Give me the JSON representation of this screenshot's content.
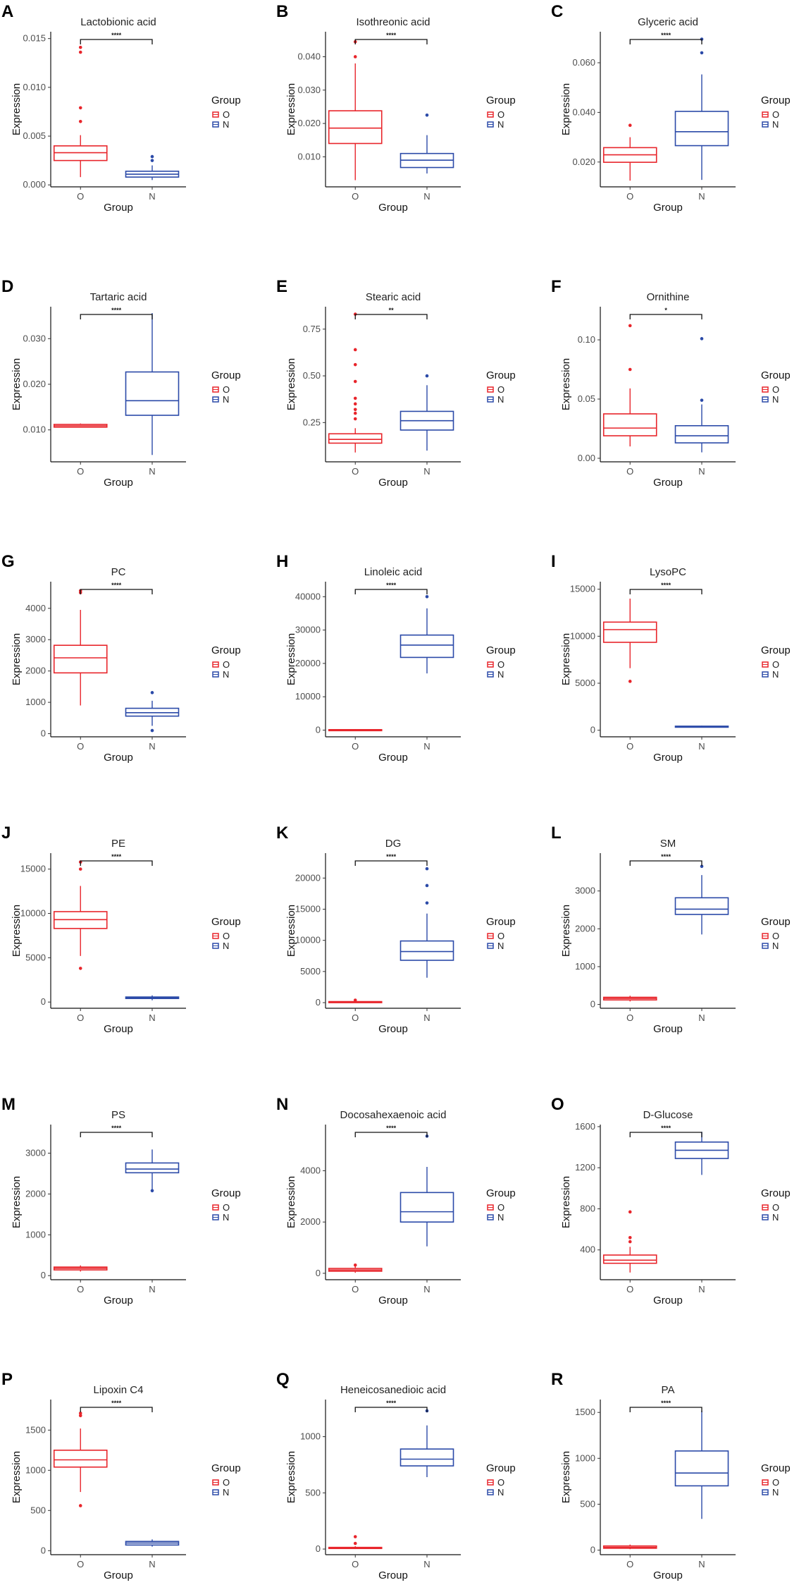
{
  "chart_data": [
    {
      "panel": "A",
      "type": "boxplot",
      "title": "Lactobionic acid",
      "xlabel": "Group",
      "ylabel": "Expression",
      "legend_title": "Group",
      "categories": [
        "O",
        "N"
      ],
      "colors": [
        "#e8252b",
        "#2b4aa8"
      ],
      "ylim": [
        -0.0002,
        0.0157
      ],
      "yticks": [
        0,
        0.005,
        0.01,
        0.015
      ],
      "ytick_labels": [
        "0.000",
        "0.005",
        "0.010",
        "0.015"
      ],
      "significance": "****",
      "boxes": [
        {
          "group": "O",
          "min": 0.0008,
          "q1": 0.0025,
          "median": 0.0033,
          "q3": 0.004,
          "max": 0.0051,
          "outliers": [
            0.0065,
            0.0079,
            0.0136,
            0.0141
          ]
        },
        {
          "group": "N",
          "min": 0.0005,
          "q1": 0.0008,
          "median": 0.0011,
          "q3": 0.0014,
          "max": 0.002,
          "outliers": [
            0.0025,
            0.0029
          ]
        }
      ]
    },
    {
      "panel": "B",
      "type": "boxplot",
      "title": "Isothreonic acid",
      "xlabel": "Group",
      "ylabel": "Expression",
      "legend_title": "Group",
      "categories": [
        "O",
        "N"
      ],
      "colors": [
        "#e8252b",
        "#2b4aa8"
      ],
      "ylim": [
        0.001,
        0.0475
      ],
      "yticks": [
        0.01,
        0.02,
        0.03,
        0.04
      ],
      "ytick_labels": [
        "0.010",
        "0.020",
        "0.030",
        "0.040"
      ],
      "significance": "****",
      "boxes": [
        {
          "group": "O",
          "min": 0.003,
          "q1": 0.014,
          "median": 0.0186,
          "q3": 0.0238,
          "max": 0.038,
          "outliers": [
            0.04,
            0.0445
          ]
        },
        {
          "group": "N",
          "min": 0.005,
          "q1": 0.0068,
          "median": 0.009,
          "q3": 0.011,
          "max": 0.0165,
          "outliers": [
            0.0225
          ]
        }
      ]
    },
    {
      "panel": "C",
      "type": "boxplot",
      "title": "Glyceric acid",
      "xlabel": "Group",
      "ylabel": "Expression",
      "legend_title": "Group",
      "categories": [
        "O",
        "N"
      ],
      "colors": [
        "#e8252b",
        "#2b4aa8"
      ],
      "ylim": [
        0.01,
        0.0725
      ],
      "yticks": [
        0.02,
        0.04,
        0.06
      ],
      "ytick_labels": [
        "0.020",
        "0.040",
        "0.060"
      ],
      "significance": "****",
      "boxes": [
        {
          "group": "O",
          "min": 0.0125,
          "q1": 0.0199,
          "median": 0.0229,
          "q3": 0.0258,
          "max": 0.03,
          "outliers": [
            0.0348
          ]
        },
        {
          "group": "N",
          "min": 0.0128,
          "q1": 0.0266,
          "median": 0.0322,
          "q3": 0.0404,
          "max": 0.0553,
          "outliers": [
            0.064,
            0.0695
          ]
        }
      ]
    },
    {
      "panel": "D",
      "type": "boxplot",
      "title": "Tartaric acid",
      "xlabel": "Group",
      "ylabel": "Expression",
      "legend_title": "Group",
      "categories": [
        "O",
        "N"
      ],
      "colors": [
        "#e8252b",
        "#2b4aa8"
      ],
      "ylim": [
        0.003,
        0.037
      ],
      "yticks": [
        0.01,
        0.02,
        0.03
      ],
      "ytick_labels": [
        "0.010",
        "0.020",
        "0.030"
      ],
      "significance": "****",
      "boxes": [
        {
          "group": "O",
          "min": 0.0105,
          "q1": 0.0106,
          "median": 0.0109,
          "q3": 0.0112,
          "max": 0.0114,
          "outliers": []
        },
        {
          "group": "N",
          "min": 0.0045,
          "q1": 0.0132,
          "median": 0.0164,
          "q3": 0.0227,
          "max": 0.0356,
          "outliers": []
        }
      ]
    },
    {
      "panel": "E",
      "type": "boxplot",
      "title": "Stearic acid",
      "xlabel": "Group",
      "ylabel": "Expression",
      "legend_title": "Group",
      "categories": [
        "O",
        "N"
      ],
      "colors": [
        "#e8252b",
        "#2b4aa8"
      ],
      "ylim": [
        0.04,
        0.87
      ],
      "yticks": [
        0.25,
        0.5,
        0.75
      ],
      "ytick_labels": [
        "0.25",
        "0.50",
        "0.75"
      ],
      "significance": "**",
      "boxes": [
        {
          "group": "O",
          "min": 0.09,
          "q1": 0.14,
          "median": 0.16,
          "q3": 0.19,
          "max": 0.22,
          "outliers": [
            0.27,
            0.3,
            0.32,
            0.35,
            0.38,
            0.47,
            0.56,
            0.64,
            0.83
          ]
        },
        {
          "group": "N",
          "min": 0.1,
          "q1": 0.21,
          "median": 0.26,
          "q3": 0.31,
          "max": 0.45,
          "outliers": [
            0.5
          ]
        }
      ]
    },
    {
      "panel": "F",
      "type": "boxplot",
      "title": "Ornithine",
      "xlabel": "Group",
      "ylabel": "Expression",
      "legend_title": "Group",
      "categories": [
        "O",
        "N"
      ],
      "colors": [
        "#e8252b",
        "#2b4aa8"
      ],
      "ylim": [
        -0.003,
        0.128
      ],
      "yticks": [
        0,
        0.05,
        0.1
      ],
      "ytick_labels": [
        "0.00",
        "0.05",
        "0.10"
      ],
      "significance": "*",
      "boxes": [
        {
          "group": "O",
          "min": 0.01,
          "q1": 0.019,
          "median": 0.0255,
          "q3": 0.0375,
          "max": 0.059,
          "outliers": [
            0.075,
            0.112
          ]
        },
        {
          "group": "N",
          "min": 0.005,
          "q1": 0.013,
          "median": 0.019,
          "q3": 0.0275,
          "max": 0.0455,
          "outliers": [
            0.049,
            0.101
          ]
        }
      ]
    },
    {
      "panel": "G",
      "type": "boxplot",
      "title": "PC",
      "xlabel": "Group",
      "ylabel": "Expression",
      "legend_title": "Group",
      "categories": [
        "O",
        "N"
      ],
      "colors": [
        "#e8252b",
        "#2b4aa8"
      ],
      "ylim": [
        -100,
        4850
      ],
      "yticks": [
        0,
        1000,
        2000,
        3000,
        4000
      ],
      "ytick_labels": [
        "0",
        "1000",
        "2000",
        "3000",
        "4000"
      ],
      "significance": "****",
      "boxes": [
        {
          "group": "O",
          "min": 900,
          "q1": 1940,
          "median": 2420,
          "q3": 2820,
          "max": 3950,
          "outliers": [
            4500,
            4560
          ]
        },
        {
          "group": "N",
          "min": 250,
          "q1": 560,
          "median": 670,
          "q3": 810,
          "max": 1050,
          "outliers": [
            100,
            1310
          ]
        }
      ]
    },
    {
      "panel": "H",
      "type": "boxplot",
      "title": "Linoleic acid",
      "xlabel": "Group",
      "ylabel": "Expression",
      "legend_title": "Group",
      "categories": [
        "O",
        "N"
      ],
      "colors": [
        "#e8252b",
        "#2b4aa8"
      ],
      "ylim": [
        -2000,
        44500
      ],
      "yticks": [
        0,
        10000,
        20000,
        30000,
        40000
      ],
      "ytick_labels": [
        "0",
        "10000",
        "20000",
        "30000",
        "40000"
      ],
      "significance": "****",
      "boxes": [
        {
          "group": "O",
          "min": 0,
          "q1": 50,
          "median": 100,
          "q3": 150,
          "max": 250,
          "outliers": []
        },
        {
          "group": "N",
          "min": 17000,
          "q1": 21800,
          "median": 25500,
          "q3": 28500,
          "max": 36500,
          "outliers": [
            40000
          ]
        }
      ]
    },
    {
      "panel": "I",
      "type": "boxplot",
      "title": "LysoPC",
      "xlabel": "Group",
      "ylabel": "Expression",
      "legend_title": "Group",
      "categories": [
        "O",
        "N"
      ],
      "colors": [
        "#e8252b",
        "#2b4aa8"
      ],
      "ylim": [
        -700,
        15800
      ],
      "yticks": [
        0,
        5000,
        10000,
        15000
      ],
      "ytick_labels": [
        "0",
        "5000",
        "10000",
        "15000"
      ],
      "significance": "****",
      "boxes": [
        {
          "group": "O",
          "min": 6600,
          "q1": 9350,
          "median": 10700,
          "q3": 11500,
          "max": 14000,
          "outliers": [
            5200
          ]
        },
        {
          "group": "N",
          "min": 280,
          "q1": 330,
          "median": 380,
          "q3": 430,
          "max": 480,
          "outliers": []
        }
      ]
    },
    {
      "panel": "J",
      "type": "boxplot",
      "title": "PE",
      "xlabel": "Group",
      "ylabel": "Expression",
      "legend_title": "Group",
      "categories": [
        "O",
        "N"
      ],
      "colors": [
        "#e8252b",
        "#2b4aa8"
      ],
      "ylim": [
        -700,
        16800
      ],
      "yticks": [
        0,
        5000,
        10000,
        15000
      ],
      "ytick_labels": [
        "0",
        "5000",
        "10000",
        "15000"
      ],
      "significance": "****",
      "boxes": [
        {
          "group": "O",
          "min": 5200,
          "q1": 8300,
          "median": 9300,
          "q3": 10200,
          "max": 13100,
          "outliers": [
            3800,
            15000,
            15800
          ]
        },
        {
          "group": "N",
          "min": 200,
          "q1": 400,
          "median": 480,
          "q3": 570,
          "max": 750,
          "outliers": []
        }
      ]
    },
    {
      "panel": "K",
      "type": "boxplot",
      "title": "DG",
      "xlabel": "Group",
      "ylabel": "Expression",
      "legend_title": "Group",
      "categories": [
        "O",
        "N"
      ],
      "colors": [
        "#e8252b",
        "#2b4aa8"
      ],
      "ylim": [
        -900,
        24000
      ],
      "yticks": [
        0,
        5000,
        10000,
        15000,
        20000
      ],
      "ytick_labels": [
        "0",
        "5000",
        "10000",
        "15000",
        "20000"
      ],
      "significance": "****",
      "boxes": [
        {
          "group": "O",
          "min": 0,
          "q1": 60,
          "median": 120,
          "q3": 170,
          "max": 230,
          "outliers": [
            400
          ]
        },
        {
          "group": "N",
          "min": 4000,
          "q1": 6800,
          "median": 8200,
          "q3": 9900,
          "max": 14300,
          "outliers": [
            16000,
            18800,
            21500
          ]
        }
      ]
    },
    {
      "panel": "L",
      "type": "boxplot",
      "title": "SM",
      "xlabel": "Group",
      "ylabel": "Expression",
      "legend_title": "Group",
      "categories": [
        "O",
        "N"
      ],
      "colors": [
        "#e8252b",
        "#2b4aa8"
      ],
      "ylim": [
        -100,
        4000
      ],
      "yticks": [
        0,
        1000,
        2000,
        3000
      ],
      "ytick_labels": [
        "0",
        "1000",
        "2000",
        "3000"
      ],
      "significance": "****",
      "boxes": [
        {
          "group": "O",
          "min": 80,
          "q1": 120,
          "median": 160,
          "q3": 190,
          "max": 230,
          "outliers": []
        },
        {
          "group": "N",
          "min": 1850,
          "q1": 2380,
          "median": 2520,
          "q3": 2820,
          "max": 3420,
          "outliers": [
            3650
          ]
        }
      ]
    },
    {
      "panel": "M",
      "type": "boxplot",
      "title": "PS",
      "xlabel": "Group",
      "ylabel": "Expression",
      "legend_title": "Group",
      "categories": [
        "O",
        "N"
      ],
      "colors": [
        "#e8252b",
        "#2b4aa8"
      ],
      "ylim": [
        -100,
        3700
      ],
      "yticks": [
        0,
        1000,
        2000,
        3000
      ],
      "ytick_labels": [
        "0",
        "1000",
        "2000",
        "3000"
      ],
      "significance": "****",
      "boxes": [
        {
          "group": "O",
          "min": 100,
          "q1": 140,
          "median": 180,
          "q3": 210,
          "max": 250,
          "outliers": []
        },
        {
          "group": "N",
          "min": 2100,
          "q1": 2520,
          "median": 2610,
          "q3": 2760,
          "max": 3090,
          "outliers": [
            2080
          ]
        }
      ]
    },
    {
      "panel": "N",
      "type": "boxplot",
      "title": "Docosahexaenoic acid",
      "xlabel": "Group",
      "ylabel": "Expression",
      "legend_title": "Group",
      "categories": [
        "O",
        "N"
      ],
      "colors": [
        "#e8252b",
        "#2b4aa8"
      ],
      "ylim": [
        -250,
        5800
      ],
      "yticks": [
        0,
        2000,
        4000
      ],
      "ytick_labels": [
        "0",
        "2000",
        "4000"
      ],
      "significance": "****",
      "boxes": [
        {
          "group": "O",
          "min": 20,
          "q1": 80,
          "median": 130,
          "q3": 190,
          "max": 270,
          "outliers": [
            320
          ]
        },
        {
          "group": "N",
          "min": 1050,
          "q1": 2000,
          "median": 2400,
          "q3": 3150,
          "max": 4150,
          "outliers": [
            5350
          ]
        }
      ]
    },
    {
      "panel": "O",
      "type": "boxplot",
      "title": "D-Glucose",
      "xlabel": "Group",
      "ylabel": "Expression",
      "legend_title": "Group",
      "categories": [
        "O",
        "N"
      ],
      "colors": [
        "#e8252b",
        "#2b4aa8"
      ],
      "ylim": [
        110,
        1620
      ],
      "yticks": [
        400,
        800,
        1200,
        1600
      ],
      "ytick_labels": [
        "400",
        "800",
        "1200",
        "1600"
      ],
      "significance": "****",
      "boxes": [
        {
          "group": "O",
          "min": 180,
          "q1": 270,
          "median": 300,
          "q3": 350,
          "max": 430,
          "outliers": [
            480,
            520,
            770
          ]
        },
        {
          "group": "N",
          "min": 1130,
          "q1": 1290,
          "median": 1370,
          "q3": 1450,
          "max": 1550,
          "outliers": []
        }
      ]
    },
    {
      "panel": "P",
      "type": "boxplot",
      "title": "Lipoxin C4",
      "xlabel": "Group",
      "ylabel": "Expression",
      "legend_title": "Group",
      "categories": [
        "O",
        "N"
      ],
      "colors": [
        "#e8252b",
        "#2b4aa8"
      ],
      "ylim": [
        -50,
        1880
      ],
      "yticks": [
        0,
        500,
        1000,
        1500
      ],
      "ytick_labels": [
        "0",
        "500",
        "1000",
        "1500"
      ],
      "significance": "****",
      "boxes": [
        {
          "group": "O",
          "min": 730,
          "q1": 1040,
          "median": 1130,
          "q3": 1250,
          "max": 1520,
          "outliers": [
            560,
            1680,
            1710
          ]
        },
        {
          "group": "N",
          "min": 50,
          "q1": 70,
          "median": 95,
          "q3": 115,
          "max": 140,
          "outliers": []
        }
      ]
    },
    {
      "panel": "Q",
      "type": "boxplot",
      "title": "Heneicosanedioic acid",
      "xlabel": "Group",
      "ylabel": "Expression",
      "legend_title": "Group",
      "categories": [
        "O",
        "N"
      ],
      "colors": [
        "#e8252b",
        "#2b4aa8"
      ],
      "ylim": [
        -50,
        1330
      ],
      "yticks": [
        0,
        500,
        1000
      ],
      "ytick_labels": [
        "0",
        "500",
        "1000"
      ],
      "significance": "****",
      "boxes": [
        {
          "group": "O",
          "min": 0,
          "q1": 5,
          "median": 10,
          "q3": 15,
          "max": 25,
          "outliers": [
            50,
            110
          ]
        },
        {
          "group": "N",
          "min": 640,
          "q1": 740,
          "median": 800,
          "q3": 890,
          "max": 1100,
          "outliers": [
            1230
          ]
        }
      ]
    },
    {
      "panel": "R",
      "type": "boxplot",
      "title": "PA",
      "xlabel": "Group",
      "ylabel": "Expression",
      "legend_title": "Group",
      "categories": [
        "O",
        "N"
      ],
      "colors": [
        "#e8252b",
        "#2b4aa8"
      ],
      "ylim": [
        -50,
        1640
      ],
      "yticks": [
        0,
        500,
        1000,
        1500
      ],
      "ytick_labels": [
        "0",
        "500",
        "1000",
        "1500"
      ],
      "significance": "****",
      "boxes": [
        {
          "group": "O",
          "min": 10,
          "q1": 20,
          "median": 30,
          "q3": 45,
          "max": 60,
          "outliers": []
        },
        {
          "group": "N",
          "min": 340,
          "q1": 700,
          "median": 840,
          "q3": 1080,
          "max": 1520,
          "outliers": []
        }
      ]
    }
  ]
}
